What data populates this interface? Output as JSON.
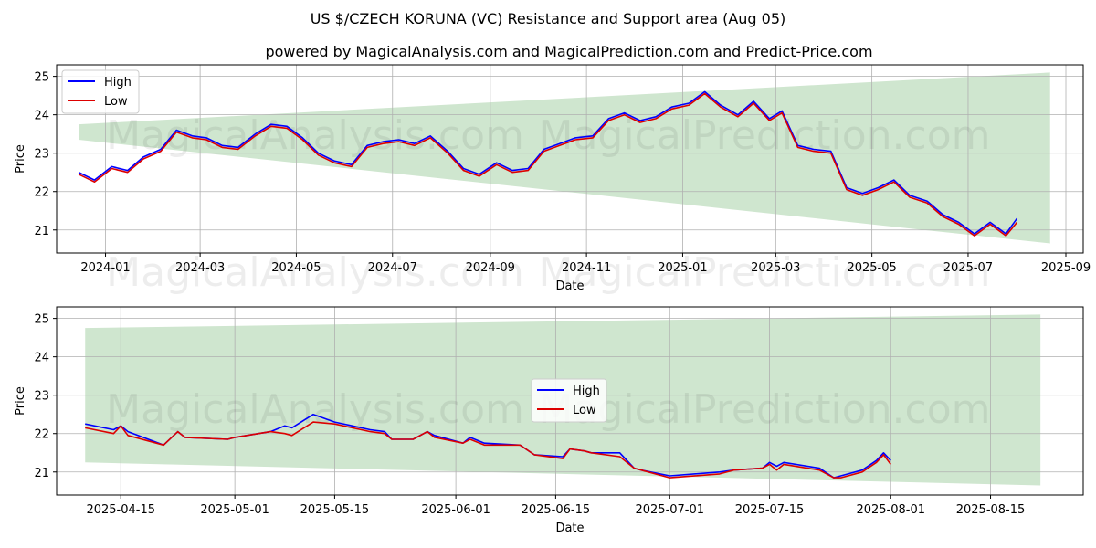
{
  "chart_data": [
    {
      "type": "line",
      "title": "US $/CZECH KORUNA (VC) Resistance and Support area (Aug 05)",
      "subtitle": "powered by MagicalAnalysis.com and MagicalPrediction.com and Predict-Price.com",
      "xlabel": "Date",
      "ylabel": "Price",
      "xlim": [
        "2023-12-01",
        "2025-09-12"
      ],
      "ylim": [
        20.4,
        25.3
      ],
      "xticks": [
        "2024-01",
        "2024-03",
        "2024-05",
        "2024-07",
        "2024-09",
        "2024-11",
        "2025-01",
        "2025-03",
        "2025-05",
        "2025-07",
        "2025-09"
      ],
      "yticks": [
        21,
        22,
        23,
        24,
        25
      ],
      "grid": true,
      "legend_position": "upper left",
      "band": {
        "name": "Resistance and Support area",
        "color": "#cfe6cf",
        "start": {
          "x": "2023-12-15",
          "low": 23.35,
          "high": 23.75
        },
        "end": {
          "x": "2025-08-22",
          "low": 20.65,
          "high": 25.1
        }
      },
      "dates": [
        "2023-12-15",
        "2023-12-25",
        "2024-01-05",
        "2024-01-15",
        "2024-01-25",
        "2024-02-05",
        "2024-02-15",
        "2024-02-25",
        "2024-03-05",
        "2024-03-15",
        "2024-03-25",
        "2024-04-05",
        "2024-04-15",
        "2024-04-25",
        "2024-05-05",
        "2024-05-15",
        "2024-05-25",
        "2024-06-05",
        "2024-06-15",
        "2024-06-25",
        "2024-07-05",
        "2024-07-15",
        "2024-07-25",
        "2024-08-05",
        "2024-08-15",
        "2024-08-25",
        "2024-09-05",
        "2024-09-15",
        "2024-09-25",
        "2024-10-05",
        "2024-10-15",
        "2024-10-25",
        "2024-11-05",
        "2024-11-15",
        "2024-11-25",
        "2024-12-05",
        "2024-12-15",
        "2024-12-25",
        "2025-01-05",
        "2025-01-15",
        "2025-01-25",
        "2025-02-05",
        "2025-02-15",
        "2025-02-25",
        "2025-03-05",
        "2025-03-15",
        "2025-03-25",
        "2025-04-05",
        "2025-04-15",
        "2025-04-25",
        "2025-05-05",
        "2025-05-15",
        "2025-05-25",
        "2025-06-05",
        "2025-06-15",
        "2025-06-25",
        "2025-07-05",
        "2025-07-15",
        "2025-07-25",
        "2025-08-01"
      ],
      "series": [
        {
          "name": "High",
          "color": "#0000ff",
          "values": [
            22.5,
            22.3,
            22.65,
            22.55,
            22.9,
            23.1,
            23.6,
            23.45,
            23.4,
            23.2,
            23.15,
            23.5,
            23.75,
            23.7,
            23.4,
            23.0,
            22.8,
            22.7,
            23.2,
            23.3,
            23.35,
            23.25,
            23.45,
            23.05,
            22.6,
            22.45,
            22.75,
            22.55,
            22.6,
            23.1,
            23.25,
            23.4,
            23.45,
            23.9,
            24.05,
            23.85,
            23.95,
            24.2,
            24.3,
            24.6,
            24.25,
            24.0,
            24.35,
            23.9,
            24.1,
            23.2,
            23.1,
            23.05,
            22.1,
            21.95,
            22.1,
            22.3,
            21.9,
            21.75,
            21.4,
            21.2,
            20.9,
            21.2,
            20.9,
            21.3
          ]
        },
        {
          "name": "Low",
          "color": "#dd0000",
          "values": [
            22.45,
            22.25,
            22.6,
            22.5,
            22.85,
            23.05,
            23.55,
            23.4,
            23.35,
            23.15,
            23.1,
            23.45,
            23.7,
            23.65,
            23.35,
            22.95,
            22.75,
            22.65,
            23.15,
            23.25,
            23.3,
            23.2,
            23.4,
            23.0,
            22.55,
            22.4,
            22.7,
            22.5,
            22.55,
            23.05,
            23.2,
            23.35,
            23.4,
            23.85,
            24.0,
            23.8,
            23.9,
            24.15,
            24.25,
            24.55,
            24.2,
            23.95,
            24.3,
            23.85,
            24.05,
            23.15,
            23.05,
            23.0,
            22.05,
            21.9,
            22.05,
            22.25,
            21.85,
            21.7,
            21.35,
            21.15,
            20.85,
            21.15,
            20.85,
            21.2
          ]
        }
      ]
    },
    {
      "type": "line",
      "title": "",
      "xlabel": "Date",
      "ylabel": "Price",
      "xlim": [
        "2025-04-06",
        "2025-08-28"
      ],
      "ylim": [
        20.4,
        25.3
      ],
      "xticks": [
        "2025-04-15",
        "2025-05-01",
        "2025-05-15",
        "2025-06-01",
        "2025-06-15",
        "2025-07-01",
        "2025-07-15",
        "2025-08-01",
        "2025-08-15"
      ],
      "yticks": [
        21,
        22,
        23,
        24,
        25
      ],
      "grid": true,
      "legend_position": "center",
      "band": {
        "name": "Resistance and Support area",
        "color": "#cfe6cf",
        "start": {
          "x": "2025-04-10",
          "low": 21.25,
          "high": 24.75
        },
        "end": {
          "x": "2025-08-22",
          "low": 20.65,
          "high": 25.1
        }
      },
      "dates": [
        "2025-04-10",
        "2025-04-14",
        "2025-04-15",
        "2025-04-16",
        "2025-04-21",
        "2025-04-23",
        "2025-04-24",
        "2025-04-30",
        "2025-05-01",
        "2025-05-06",
        "2025-05-08",
        "2025-05-09",
        "2025-05-12",
        "2025-05-15",
        "2025-05-20",
        "2025-05-22",
        "2025-05-23",
        "2025-05-26",
        "2025-05-28",
        "2025-05-29",
        "2025-06-02",
        "2025-06-03",
        "2025-06-05",
        "2025-06-10",
        "2025-06-12",
        "2025-06-16",
        "2025-06-17",
        "2025-06-19",
        "2025-06-20",
        "2025-06-24",
        "2025-06-26",
        "2025-06-27",
        "2025-07-01",
        "2025-07-08",
        "2025-07-10",
        "2025-07-14",
        "2025-07-15",
        "2025-07-16",
        "2025-07-17",
        "2025-07-22",
        "2025-07-24",
        "2025-07-25",
        "2025-07-28",
        "2025-07-30",
        "2025-07-31",
        "2025-08-01"
      ],
      "series": [
        {
          "name": "High",
          "color": "#0000ff",
          "values": [
            22.25,
            22.1,
            22.2,
            22.05,
            21.7,
            22.05,
            21.9,
            21.85,
            21.9,
            22.05,
            22.2,
            22.15,
            22.5,
            22.3,
            22.1,
            22.05,
            21.85,
            21.85,
            22.05,
            21.95,
            21.75,
            21.9,
            21.75,
            21.7,
            21.45,
            21.4,
            21.6,
            21.55,
            21.5,
            21.5,
            21.1,
            21.05,
            20.9,
            21.0,
            21.05,
            21.1,
            21.25,
            21.15,
            21.25,
            21.1,
            20.85,
            20.9,
            21.05,
            21.3,
            21.5,
            21.3
          ]
        },
        {
          "name": "Low",
          "color": "#dd0000",
          "values": [
            22.15,
            22.0,
            22.2,
            21.95,
            21.7,
            22.05,
            21.9,
            21.85,
            21.9,
            22.05,
            22.0,
            21.95,
            22.3,
            22.25,
            22.05,
            22.0,
            21.85,
            21.85,
            22.05,
            21.9,
            21.75,
            21.85,
            21.7,
            21.7,
            21.45,
            21.35,
            21.6,
            21.55,
            21.5,
            21.4,
            21.1,
            21.05,
            20.85,
            20.95,
            21.05,
            21.1,
            21.2,
            21.05,
            21.2,
            21.05,
            20.85,
            20.85,
            21.0,
            21.25,
            21.45,
            21.2
          ]
        }
      ]
    }
  ],
  "watermarks": [
    "MagicalAnalysis.com",
    "MagicalPrediction.com"
  ]
}
